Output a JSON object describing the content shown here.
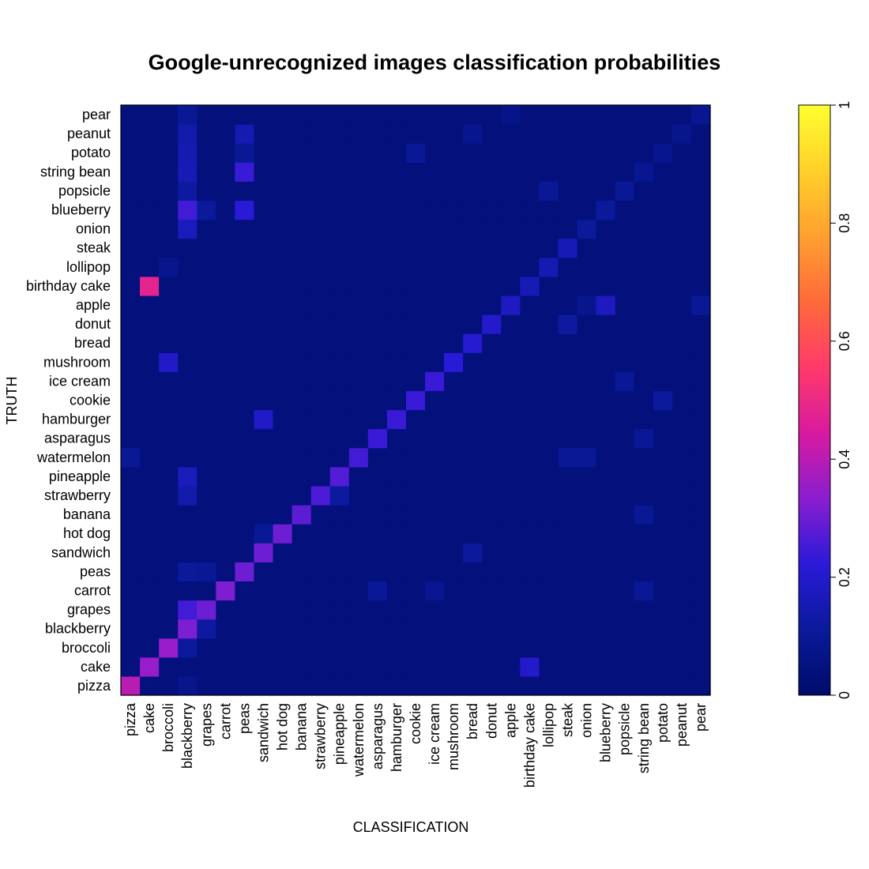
{
  "chart_data": {
    "type": "heatmap",
    "title": "Google-unrecognized images classification probabilities",
    "xlabel": "CLASSIFICATION",
    "ylabel": "TRUTH",
    "x_categories": [
      "pizza",
      "cake",
      "broccoli",
      "blackberry",
      "grapes",
      "carrot",
      "peas",
      "sandwich",
      "hot dog",
      "banana",
      "strawberry",
      "pineapple",
      "watermelon",
      "asparagus",
      "hamburger",
      "cookie",
      "ice cream",
      "mushroom",
      "bread",
      "donut",
      "apple",
      "birthday cake",
      "lollipop",
      "steak",
      "onion",
      "blueberry",
      "popsicle",
      "string bean",
      "potato",
      "peanut",
      "pear"
    ],
    "y_categories": [
      "pizza",
      "cake",
      "broccoli",
      "blackberry",
      "grapes",
      "carrot",
      "peas",
      "sandwich",
      "hot dog",
      "banana",
      "strawberry",
      "pineapple",
      "watermelon",
      "asparagus",
      "hamburger",
      "cookie",
      "ice cream",
      "mushroom",
      "bread",
      "donut",
      "apple",
      "birthday cake",
      "lollipop",
      "steak",
      "onion",
      "blueberry",
      "popsicle",
      "string bean",
      "potato",
      "peanut",
      "pear"
    ],
    "base_value": 0.04,
    "cells": [
      [
        "pizza",
        "pizza",
        0.4
      ],
      [
        "cake",
        "cake",
        0.35
      ],
      [
        "broccoli",
        "broccoli",
        0.35
      ],
      [
        "blackberry",
        "blackberry",
        0.32
      ],
      [
        "grapes",
        "grapes",
        0.3
      ],
      [
        "carrot",
        "carrot",
        0.32
      ],
      [
        "peas",
        "peas",
        0.3
      ],
      [
        "sandwich",
        "sandwich",
        0.3
      ],
      [
        "hot dog",
        "hot dog",
        0.3
      ],
      [
        "banana",
        "banana",
        0.28
      ],
      [
        "strawberry",
        "strawberry",
        0.26
      ],
      [
        "pineapple",
        "pineapple",
        0.27
      ],
      [
        "watermelon",
        "watermelon",
        0.25
      ],
      [
        "asparagus",
        "asparagus",
        0.24
      ],
      [
        "hamburger",
        "hamburger",
        0.24
      ],
      [
        "cookie",
        "cookie",
        0.24
      ],
      [
        "ice cream",
        "ice cream",
        0.24
      ],
      [
        "mushroom",
        "mushroom",
        0.22
      ],
      [
        "bread",
        "bread",
        0.21
      ],
      [
        "donut",
        "donut",
        0.2
      ],
      [
        "apple",
        "apple",
        0.18
      ],
      [
        "birthday cake",
        "birthday cake",
        0.16
      ],
      [
        "lollipop",
        "lollipop",
        0.15
      ],
      [
        "steak",
        "steak",
        0.16
      ],
      [
        "onion",
        "onion",
        0.11
      ],
      [
        "blueberry",
        "blueberry",
        0.11
      ],
      [
        "popsicle",
        "popsicle",
        0.1
      ],
      [
        "string bean",
        "string bean",
        0.09
      ],
      [
        "potato",
        "potato",
        0.08
      ],
      [
        "peanut",
        "peanut",
        0.08
      ],
      [
        "pear",
        "pear",
        0.09
      ],
      [
        "birthday cake",
        "cake",
        0.48
      ],
      [
        "grapes",
        "blackberry",
        0.25
      ],
      [
        "cake",
        "birthday cake",
        0.2
      ],
      [
        "blueberry",
        "blackberry",
        0.25
      ],
      [
        "blueberry",
        "peas",
        0.22
      ],
      [
        "string bean",
        "peas",
        0.24
      ],
      [
        "mushroom",
        "broccoli",
        0.19
      ],
      [
        "hamburger",
        "sandwich",
        0.19
      ],
      [
        "apple",
        "blueberry",
        0.18
      ],
      [
        "onion",
        "blackberry",
        0.17
      ],
      [
        "pineapple",
        "blackberry",
        0.17
      ],
      [
        "pear",
        "blackberry",
        0.1
      ],
      [
        "peanut",
        "blackberry",
        0.14
      ],
      [
        "potato",
        "blackberry",
        0.15
      ],
      [
        "string bean",
        "blackberry",
        0.16
      ],
      [
        "popsicle",
        "blackberry",
        0.12
      ],
      [
        "peanut",
        "peas",
        0.15
      ],
      [
        "potato",
        "peas",
        0.1
      ],
      [
        "strawberry",
        "blackberry",
        0.14
      ],
      [
        "blackberry",
        "grapes",
        0.12
      ],
      [
        "peas",
        "blackberry",
        0.11
      ],
      [
        "peas",
        "grapes",
        0.1
      ],
      [
        "broccoli",
        "blackberry",
        0.11
      ],
      [
        "pizza",
        "blackberry",
        0.08
      ],
      [
        "lollipop",
        "lollipop",
        0.15
      ],
      [
        "steak",
        "steak",
        0.16
      ],
      [
        "donut",
        "steak",
        0.12
      ],
      [
        "onion",
        "onion",
        0.11
      ],
      [
        "banana",
        "string bean",
        0.1
      ],
      [
        "carrot",
        "string bean",
        0.1
      ],
      [
        "asparagus",
        "string bean",
        0.1
      ],
      [
        "sandwich",
        "bread",
        0.11
      ],
      [
        "cookie",
        "potato",
        0.11
      ],
      [
        "strawberry",
        "pineapple",
        0.12
      ],
      [
        "watermelon",
        "pizza",
        0.1
      ],
      [
        "pear",
        "pear",
        0.09
      ],
      [
        "blueberry",
        "grapes",
        0.11
      ],
      [
        "apple",
        "pear",
        0.1
      ],
      [
        "apple",
        "onion",
        0.08
      ],
      [
        "potato",
        "cookie",
        0.1
      ],
      [
        "popsicle",
        "lollipop",
        0.1
      ],
      [
        "ice cream",
        "popsicle",
        0.1
      ],
      [
        "watermelon",
        "steak",
        0.1
      ],
      [
        "watermelon",
        "onion",
        0.1
      ],
      [
        "hot dog",
        "sandwich",
        0.1
      ],
      [
        "pear",
        "apple",
        0.07
      ],
      [
        "lollipop",
        "broccoli",
        0.08
      ],
      [
        "peanut",
        "peanut",
        0.08
      ],
      [
        "peanut",
        "bread",
        0.08
      ],
      [
        "carrot",
        "asparagus",
        0.1
      ],
      [
        "carrot",
        "ice cream",
        0.09
      ],
      [
        "string bean",
        "string bean",
        0.09
      ]
    ],
    "colorbar": {
      "min": 0,
      "max": 1,
      "ticks": [
        "0",
        "0.2",
        "0.4",
        "0.6",
        "0.8",
        "1"
      ]
    },
    "colormap": [
      "#000b6b",
      "#0a1a9a",
      "#2a1ad8",
      "#8a1ed0",
      "#d81aa0",
      "#ff3a6a",
      "#ff6a3a",
      "#ffa030",
      "#ffd02a",
      "#ffff30"
    ],
    "grid": false,
    "legend": "colorbar right"
  }
}
